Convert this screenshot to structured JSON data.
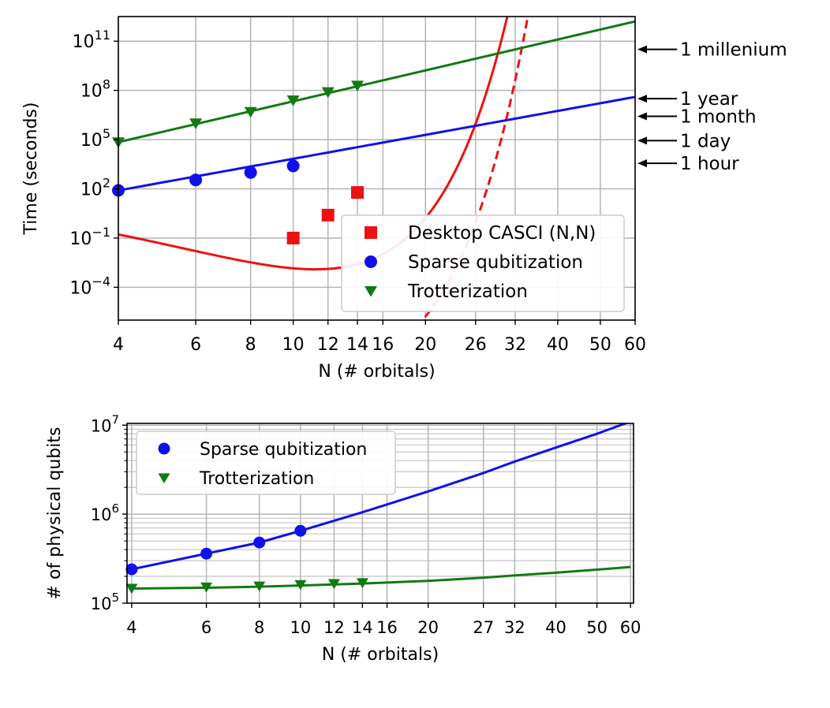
{
  "chart_data": [
    {
      "type": "line",
      "subtype": "log-log scatter with fitted curves",
      "xlabel": "N (# orbitals)",
      "ylabel": "Time (seconds)",
      "xscale": "log",
      "yscale": "log",
      "xlim": [
        4,
        60
      ],
      "ylim_log10": [
        -6,
        12.5
      ],
      "xticks": [
        4,
        6,
        8,
        10,
        12,
        14,
        16,
        20,
        26,
        32,
        40,
        50,
        60
      ],
      "xtick_labels": [
        "4",
        "6",
        "8",
        "10",
        "12",
        "14",
        "16",
        "20",
        "26",
        "32",
        "40",
        "50",
        "60"
      ],
      "yticks_log10": [
        -4,
        -1,
        2,
        5,
        8,
        11
      ],
      "ytick_labels": [
        {
          "base": "10",
          "exp": "−4"
        },
        {
          "base": "10",
          "exp": "−1"
        },
        {
          "base": "10",
          "exp": "2"
        },
        {
          "base": "10",
          "exp": "5"
        },
        {
          "base": "10",
          "exp": "8"
        },
        {
          "base": "10",
          "exp": "11"
        }
      ],
      "grid": true,
      "legend_position": "lower-right",
      "series": [
        {
          "name": "Desktop CASCI (N,N)",
          "color": "#ee1111",
          "marker": "square",
          "points": [
            {
              "x": 10,
              "y": 0.1
            },
            {
              "x": 12,
              "y": 2.5
            },
            {
              "x": 14,
              "y": 60
            }
          ],
          "fit": {
            "kind": "exp-poly",
            "fn": "log10(t) = 2.2188 - 0.9125 N + 0.040625 N^2",
            "x_range": [
              4,
              60
            ],
            "style": "solid"
          },
          "fit_extrapolated": {
            "kind": "exp-poly",
            "fn": "log10(t) = 2.2188 - 0.9125 N + 0.040625 N^2 - 6.0",
            "x_range": [
              10,
              60
            ],
            "style": "dashed"
          }
        },
        {
          "name": "Sparse qubitization",
          "color": "#1010ee",
          "marker": "circle",
          "points": [
            {
              "x": 4,
              "y": 80
            },
            {
              "x": 6,
              "y": 350
            },
            {
              "x": 8,
              "y": 1000
            },
            {
              "x": 10,
              "y": 2500
            }
          ],
          "fit": {
            "kind": "power-law",
            "y_at_x4": 80,
            "y_at_x60": 40000000,
            "style": "solid"
          }
        },
        {
          "name": "Trotterization",
          "color": "#117a11",
          "marker": "triangle-down",
          "points": [
            {
              "x": 4,
              "y": 70000
            },
            {
              "x": 6,
              "y": 1000000
            },
            {
              "x": 8,
              "y": 5000000
            },
            {
              "x": 10,
              "y": 25000000
            },
            {
              "x": 12,
              "y": 80000000
            },
            {
              "x": 14,
              "y": 200000000
            }
          ],
          "fit": {
            "kind": "power-law",
            "y_at_x4": 70000,
            "y_at_x60": 1600000000000,
            "style": "solid"
          }
        }
      ],
      "annotations": [
        {
          "text": "1 millenium",
          "y": 31536000000
        },
        {
          "text": "1 year",
          "y": 31536000
        },
        {
          "text": "1 month",
          "y": 2628000
        },
        {
          "text": "1 day",
          "y": 86400
        },
        {
          "text": "1 hour",
          "y": 3600
        }
      ]
    },
    {
      "type": "line",
      "subtype": "log-log scatter with fitted curves",
      "xlabel": "N (# orbitals)",
      "ylabel": "# of physical qubits",
      "xscale": "log",
      "yscale": "log",
      "xlim": [
        3.9,
        61
      ],
      "ylim_log10": [
        5.0,
        7.02
      ],
      "xticks": [
        4,
        6,
        8,
        10,
        12,
        14,
        16,
        20,
        27,
        32,
        40,
        50,
        60
      ],
      "xtick_labels": [
        "4",
        "6",
        "8",
        "10",
        "12",
        "14",
        "16",
        "20",
        "27",
        "32",
        "40",
        "50",
        "60"
      ],
      "yticks_log10": [
        5,
        6,
        7
      ],
      "ytick_labels": [
        {
          "base": "10",
          "exp": "5"
        },
        {
          "base": "10",
          "exp": "6"
        },
        {
          "base": "10",
          "exp": "7"
        }
      ],
      "grid": true,
      "minor_grid_y": true,
      "legend_position": "upper-left",
      "series": [
        {
          "name": "Sparse qubitization",
          "color": "#1010ee",
          "marker": "circle",
          "points": [
            {
              "x": 4,
              "y": 240000
            },
            {
              "x": 6,
              "y": 360000
            },
            {
              "x": 8,
              "y": 480000
            },
            {
              "x": 10,
              "y": 650000
            }
          ],
          "fit": {
            "kind": "smooth",
            "knots": [
              [
                4,
                240000
              ],
              [
                6,
                360000
              ],
              [
                8,
                480000
              ],
              [
                10,
                650000
              ],
              [
                14,
                1050000
              ],
              [
                20,
                1800000
              ],
              [
                27,
                2900000
              ],
              [
                32,
                3900000
              ],
              [
                40,
                5600000
              ],
              [
                50,
                8000000
              ],
              [
                60,
                11000000
              ]
            ],
            "style": "solid"
          }
        },
        {
          "name": "Trotterization",
          "color": "#117a11",
          "marker": "triangle-down",
          "points": [
            {
              "x": 4,
              "y": 147000
            },
            {
              "x": 6,
              "y": 152000
            },
            {
              "x": 8,
              "y": 156000
            },
            {
              "x": 10,
              "y": 162000
            },
            {
              "x": 12,
              "y": 166000
            },
            {
              "x": 14,
              "y": 170000
            }
          ],
          "fit": {
            "kind": "smooth",
            "knots": [
              [
                4,
                146000
              ],
              [
                6,
                149000
              ],
              [
                8,
                153000
              ],
              [
                10,
                158000
              ],
              [
                14,
                166000
              ],
              [
                20,
                178000
              ],
              [
                27,
                193000
              ],
              [
                32,
                205000
              ],
              [
                40,
                220000
              ],
              [
                50,
                238000
              ],
              [
                60,
                255000
              ]
            ],
            "style": "solid"
          }
        }
      ]
    }
  ]
}
